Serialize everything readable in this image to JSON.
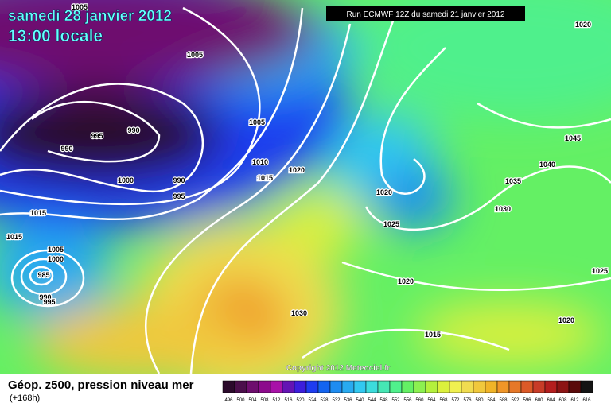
{
  "header": {
    "date": "samedi 28 janvier 2012",
    "time": "13:00 locale",
    "run": "Run ECMWF 12Z du samedi 21 janvier 2012"
  },
  "footer": {
    "title": "Géop. z500, pression niveau mer",
    "lead": "(+168h)",
    "copyright": "Copyright 2012 Meteociel.fr"
  },
  "legend": {
    "labels": [
      496,
      500,
      504,
      508,
      512,
      516,
      520,
      524,
      528,
      532,
      536,
      540,
      544,
      548,
      552,
      556,
      560,
      564,
      568,
      572,
      576,
      580,
      584,
      588,
      592,
      596,
      600,
      604,
      608,
      612,
      616
    ],
    "colors": [
      "#2b0a2b",
      "#4b0f4b",
      "#6e0e6e",
      "#8c0a8c",
      "#a812a8",
      "#6414b4",
      "#3c1edc",
      "#1e3cf0",
      "#1464f0",
      "#1e8cf0",
      "#28aaf0",
      "#32c8f0",
      "#3cdcdc",
      "#46e6b4",
      "#50f08c",
      "#64f064",
      "#8cf050",
      "#b4f03c",
      "#dcf03c",
      "#f0f050",
      "#f0dc50",
      "#f0c83c",
      "#f0b428",
      "#f09628",
      "#e67828",
      "#dc5a28",
      "#c83c28",
      "#b41e1e",
      "#8c1414",
      "#5a0a0a",
      "#141414"
    ]
  },
  "isobar_labels": [
    "1005",
    "1005",
    "1020",
    "995",
    "990",
    "990",
    "1005",
    "1045",
    "1010",
    "1015",
    "1020",
    "1000",
    "990",
    "995",
    "1020",
    "1040",
    "1035",
    "1015",
    "1030",
    "1025",
    "1015",
    "1005",
    "1000",
    "985",
    "990",
    "995",
    "1025",
    "1020",
    "1030",
    "1020",
    "1015"
  ]
}
